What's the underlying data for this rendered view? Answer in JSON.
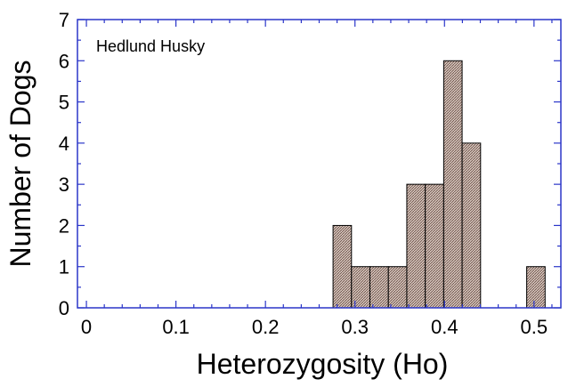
{
  "chart_data": {
    "type": "bar",
    "title": "",
    "annotation": "Hedlund Husky",
    "xlabel": "Heterozygosity (Ho)",
    "ylabel": "Number of Dogs",
    "xlim": [
      -0.01,
      0.53
    ],
    "ylim": [
      0,
      7
    ],
    "bin_width": 0.0206,
    "x_ticks": [
      "0",
      "0.1",
      "0.2",
      "0.3",
      "0.4",
      "0.5"
    ],
    "x_tick_values": [
      0,
      0.1,
      0.2,
      0.3,
      0.4,
      0.5
    ],
    "y_ticks": [
      "0",
      "1",
      "2",
      "3",
      "4",
      "5",
      "6",
      "7"
    ],
    "y_tick_values": [
      0,
      1,
      2,
      3,
      4,
      5,
      6,
      7
    ],
    "bins": [
      {
        "x0": 0.2755,
        "count": 2
      },
      {
        "x0": 0.2961,
        "count": 1
      },
      {
        "x0": 0.3167,
        "count": 1
      },
      {
        "x0": 0.3373,
        "count": 1
      },
      {
        "x0": 0.3579,
        "count": 3
      },
      {
        "x0": 0.3785,
        "count": 3
      },
      {
        "x0": 0.3991,
        "count": 6
      },
      {
        "x0": 0.4197,
        "count": 4
      },
      {
        "x0": 0.4918,
        "count": 1
      }
    ],
    "bar_fill": "#c9b7b0",
    "axis_color": "#2b36c9",
    "grid": false
  }
}
